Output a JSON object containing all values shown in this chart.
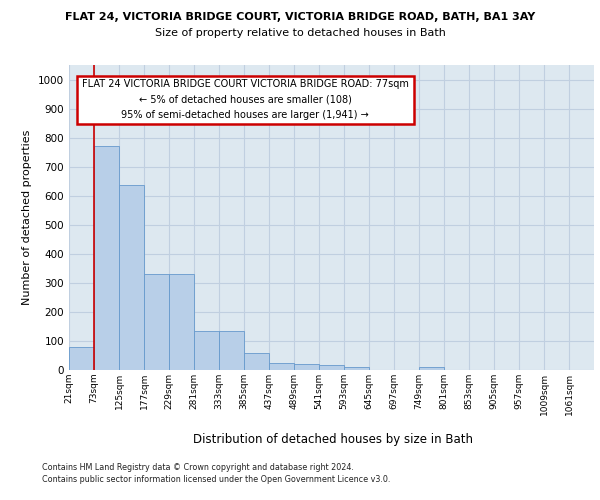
{
  "title_line1": "FLAT 24, VICTORIA BRIDGE COURT, VICTORIA BRIDGE ROAD, BATH, BA1 3AY",
  "title_line2": "Size of property relative to detached houses in Bath",
  "xlabel": "Distribution of detached houses by size in Bath",
  "ylabel": "Number of detached properties",
  "bin_labels": [
    "21sqm",
    "73sqm",
    "125sqm",
    "177sqm",
    "229sqm",
    "281sqm",
    "333sqm",
    "385sqm",
    "437sqm",
    "489sqm",
    "541sqm",
    "593sqm",
    "645sqm",
    "697sqm",
    "749sqm",
    "801sqm",
    "853sqm",
    "905sqm",
    "957sqm",
    "1009sqm",
    "1061sqm"
  ],
  "bar_values": [
    80,
    770,
    638,
    330,
    330,
    133,
    133,
    60,
    25,
    22,
    18,
    10,
    0,
    0,
    10,
    0,
    0,
    0,
    0,
    0,
    0
  ],
  "bar_color": "#b8cfe8",
  "bar_edge_color": "#6699cc",
  "ylim": [
    0,
    1050
  ],
  "yticks": [
    0,
    100,
    200,
    300,
    400,
    500,
    600,
    700,
    800,
    900,
    1000
  ],
  "property_line_x": 1,
  "property_line_color": "#cc0000",
  "annotation_text": "FLAT 24 VICTORIA BRIDGE COURT VICTORIA BRIDGE ROAD: 77sqm\n← 5% of detached houses are smaller (108)\n95% of semi-detached houses are larger (1,941) →",
  "footnote1": "Contains HM Land Registry data © Crown copyright and database right 2024.",
  "footnote2": "Contains public sector information licensed under the Open Government Licence v3.0.",
  "bg_color": "#ffffff",
  "grid_color": "#c0cfe0",
  "axis_bg_color": "#dde8f0"
}
